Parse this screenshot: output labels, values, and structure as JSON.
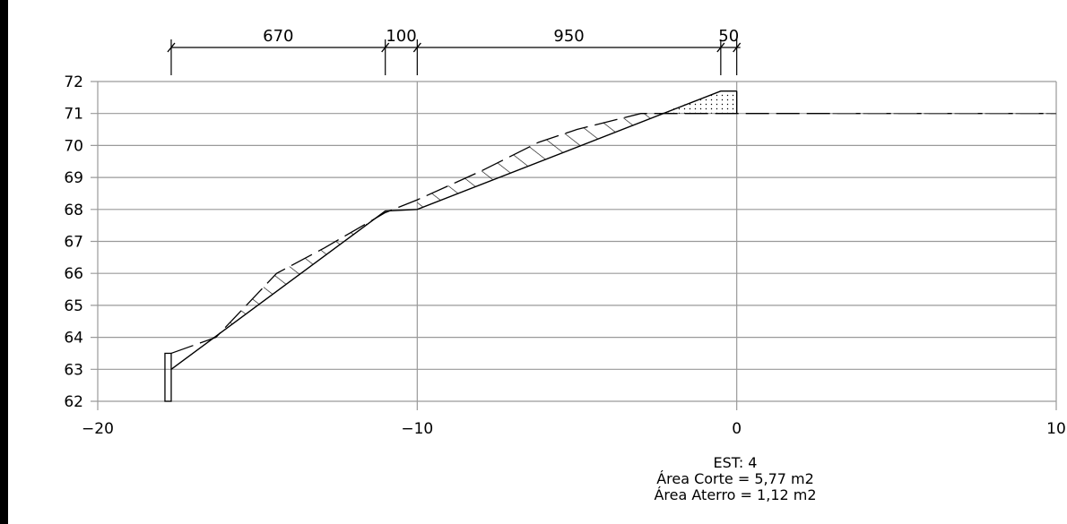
{
  "dimensions": {
    "segments": [
      {
        "label": "670",
        "from": -17.7,
        "to": -11.0
      },
      {
        "label": "100",
        "from": -11.0,
        "to": -10.0
      },
      {
        "label": "950",
        "from": -10.0,
        "to": -0.5
      },
      {
        "label": "50",
        "from": -0.5,
        "to": 0.0
      }
    ]
  },
  "axes": {
    "y_ticks": [
      "72",
      "71",
      "70",
      "69",
      "68",
      "67",
      "66",
      "65",
      "64",
      "63",
      "62"
    ],
    "y_values": [
      72,
      71,
      70,
      69,
      68,
      67,
      66,
      65,
      64,
      63,
      62
    ],
    "x_ticks": [
      "−20",
      "−10",
      "0",
      "10"
    ],
    "x_values": [
      -20,
      -10,
      0,
      10
    ],
    "x_range": [
      -20,
      10
    ],
    "y_range": [
      62,
      72
    ]
  },
  "terrain_profile": [
    {
      "x": -17.7,
      "y": 63.5
    },
    {
      "x": -16.3,
      "y": 64.0
    },
    {
      "x": -14.4,
      "y": 66.0
    },
    {
      "x": -12.9,
      "y": 66.8
    },
    {
      "x": -11.0,
      "y": 67.9
    },
    {
      "x": -10.0,
      "y": 68.3
    },
    {
      "x": -8.0,
      "y": 69.2
    },
    {
      "x": -6.2,
      "y": 70.1
    },
    {
      "x": -5.0,
      "y": 70.5
    },
    {
      "x": -3.0,
      "y": 71.0
    },
    {
      "x": 10.0,
      "y": 71.0
    }
  ],
  "design_profile": [
    {
      "x": -17.7,
      "y": 63.0
    },
    {
      "x": -11.0,
      "y": 67.95
    },
    {
      "x": -10.0,
      "y": 68.0
    },
    {
      "x": -0.5,
      "y": 71.7
    },
    {
      "x": 0.0,
      "y": 71.7
    }
  ],
  "info": {
    "station": "EST: 4",
    "cut_area": "Área Corte = 5,77 m2",
    "fill_area": "Área Aterro = 1,12 m2"
  }
}
